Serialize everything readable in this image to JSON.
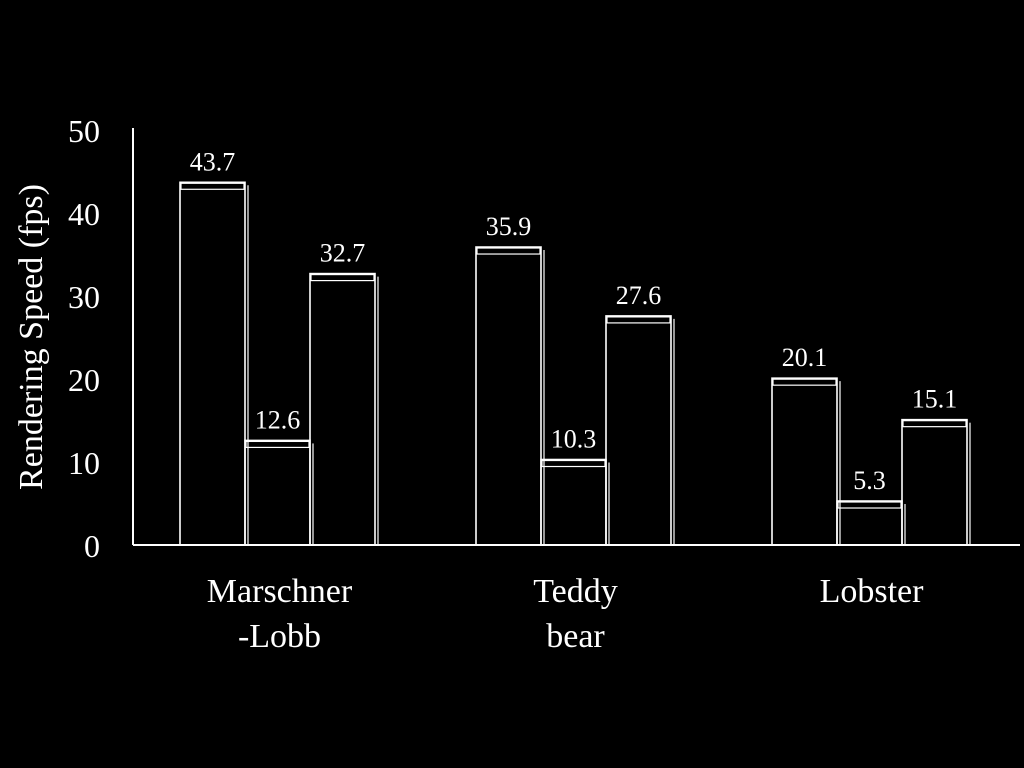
{
  "chart_data": {
    "type": "bar",
    "categories": [
      {
        "lines": [
          "Marschner",
          "-Lobb"
        ]
      },
      {
        "lines": [
          "Teddy",
          "bear"
        ]
      },
      {
        "lines": [
          "Lobster"
        ]
      }
    ],
    "series": [
      {
        "values": [
          43.7,
          35.9,
          20.1
        ]
      },
      {
        "values": [
          12.6,
          10.3,
          5.3
        ]
      },
      {
        "values": [
          32.7,
          27.6,
          15.1
        ]
      }
    ],
    "value_labels": [
      [
        "43.7",
        "12.6",
        "32.7"
      ],
      [
        "35.9",
        "10.3",
        "27.6"
      ],
      [
        "20.1",
        "5.3",
        "15.1"
      ]
    ],
    "ylabel": "Rendering Speed (fps)",
    "ylim": [
      0,
      50
    ],
    "yticks": [
      "0",
      "10",
      "20",
      "30",
      "40",
      "50"
    ],
    "grid": false,
    "colors": {
      "background": "#000000",
      "outline": "#ffffff"
    }
  }
}
